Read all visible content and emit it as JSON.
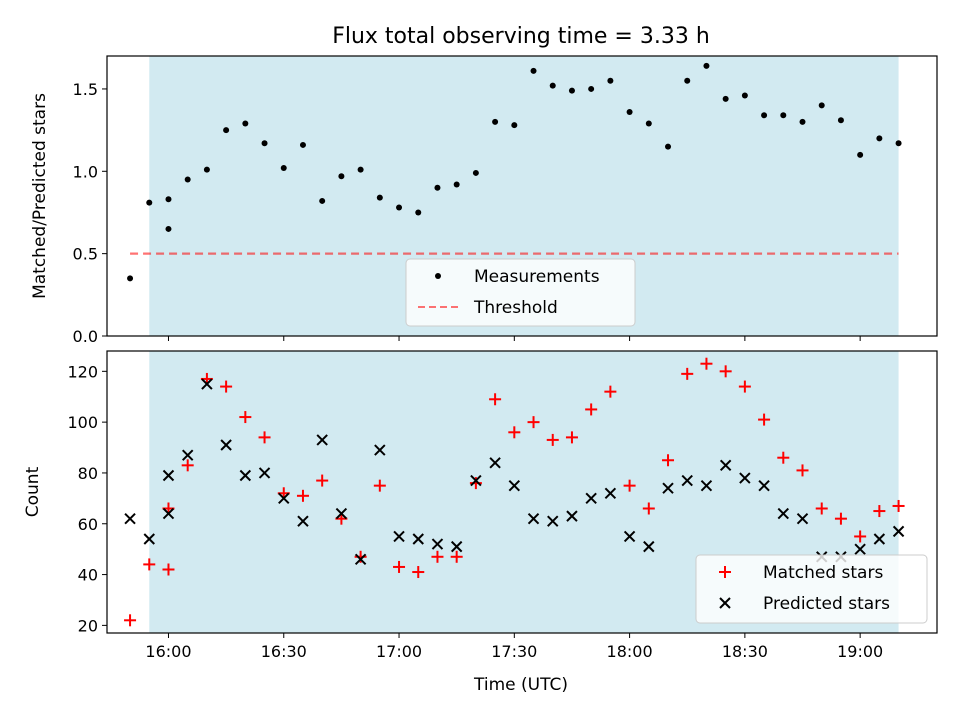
{
  "figure": {
    "title": "Flux total observing time = 3.33 h",
    "xlabel": "Time (UTC)"
  },
  "chart_data": [
    {
      "type": "scatter",
      "panel": "top",
      "title": "Flux total observing time = 3.33 h",
      "ylabel": "Matched/Predicted stars",
      "xlim": [
        "15:44",
        "19:20"
      ],
      "ylim": [
        0,
        1.7
      ],
      "yticks": [
        0.0,
        0.5,
        1.0,
        1.5
      ],
      "ytick_labels": [
        "0.0",
        "0.5",
        "1.0",
        "1.5"
      ],
      "xticks": [
        "16:00",
        "16:30",
        "17:00",
        "17:30",
        "18:00",
        "18:30",
        "19:00"
      ],
      "shaded_span": {
        "from": "15:55",
        "to": "19:10",
        "color": "#add8e6"
      },
      "legend": {
        "placement": "bottom-center",
        "entries": [
          "Measurements",
          "Threshold"
        ]
      },
      "series": [
        {
          "name": "Measurements",
          "marker": "dot",
          "color": "#000000",
          "points": [
            [
              "15:50",
              0.35
            ],
            [
              "15:55",
              0.81
            ],
            [
              "16:00",
              0.83
            ],
            [
              "16:00",
              0.65
            ],
            [
              "16:05",
              0.95
            ],
            [
              "16:10",
              1.01
            ],
            [
              "16:15",
              1.25
            ],
            [
              "16:20",
              1.29
            ],
            [
              "16:25",
              1.17
            ],
            [
              "16:30",
              1.02
            ],
            [
              "16:35",
              1.16
            ],
            [
              "16:40",
              0.82
            ],
            [
              "16:45",
              0.97
            ],
            [
              "16:50",
              1.01
            ],
            [
              "16:55",
              0.84
            ],
            [
              "17:00",
              0.78
            ],
            [
              "17:05",
              0.75
            ],
            [
              "17:10",
              0.9
            ],
            [
              "17:15",
              0.92
            ],
            [
              "17:20",
              0.99
            ],
            [
              "17:25",
              1.3
            ],
            [
              "17:30",
              1.28
            ],
            [
              "17:35",
              1.61
            ],
            [
              "17:40",
              1.52
            ],
            [
              "17:45",
              1.49
            ],
            [
              "17:50",
              1.5
            ],
            [
              "17:55",
              1.55
            ],
            [
              "18:00",
              1.36
            ],
            [
              "18:05",
              1.29
            ],
            [
              "18:10",
              1.15
            ],
            [
              "18:15",
              1.55
            ],
            [
              "18:20",
              1.64
            ],
            [
              "18:25",
              1.44
            ],
            [
              "18:30",
              1.46
            ],
            [
              "18:35",
              1.34
            ],
            [
              "18:40",
              1.34
            ],
            [
              "18:45",
              1.3
            ],
            [
              "18:50",
              1.4
            ],
            [
              "18:55",
              1.31
            ],
            [
              "19:00",
              1.1
            ],
            [
              "19:05",
              1.2
            ],
            [
              "19:10",
              1.17
            ]
          ]
        },
        {
          "name": "Threshold",
          "type": "line",
          "style": "dashed",
          "color": "#ff0000",
          "alpha": 0.55,
          "points": [
            [
              "15:50",
              0.5
            ],
            [
              "19:10",
              0.5
            ]
          ]
        }
      ]
    },
    {
      "type": "scatter",
      "panel": "bottom",
      "ylabel": "Count",
      "xlabel": "Time (UTC)",
      "xlim": [
        "15:44",
        "19:20"
      ],
      "ylim": [
        17,
        128
      ],
      "yticks": [
        20,
        40,
        60,
        80,
        100,
        120
      ],
      "ytick_labels": [
        "20",
        "40",
        "60",
        "80",
        "100",
        "120"
      ],
      "xticks": [
        "16:00",
        "16:30",
        "17:00",
        "17:30",
        "18:00",
        "18:30",
        "19:00"
      ],
      "shaded_span": {
        "from": "15:55",
        "to": "19:10",
        "color": "#add8e6"
      },
      "legend": {
        "placement": "bottom-right",
        "entries": [
          "Matched stars",
          "Predicted stars"
        ]
      },
      "series": [
        {
          "name": "Matched stars",
          "marker": "plus",
          "color": "#ff0000",
          "points": [
            [
              "15:50",
              22
            ],
            [
              "15:55",
              44
            ],
            [
              "16:00",
              66
            ],
            [
              "16:00",
              42
            ],
            [
              "16:05",
              83
            ],
            [
              "16:10",
              117
            ],
            [
              "16:15",
              114
            ],
            [
              "16:20",
              102
            ],
            [
              "16:25",
              94
            ],
            [
              "16:30",
              72
            ],
            [
              "16:35",
              71
            ],
            [
              "16:40",
              77
            ],
            [
              "16:45",
              62
            ],
            [
              "16:50",
              47
            ],
            [
              "16:55",
              75
            ],
            [
              "17:00",
              43
            ],
            [
              "17:05",
              41
            ],
            [
              "17:10",
              47
            ],
            [
              "17:15",
              47
            ],
            [
              "17:20",
              76
            ],
            [
              "17:25",
              109
            ],
            [
              "17:30",
              96
            ],
            [
              "17:35",
              100
            ],
            [
              "17:40",
              93
            ],
            [
              "17:45",
              94
            ],
            [
              "17:50",
              105
            ],
            [
              "17:55",
              112
            ],
            [
              "18:00",
              75
            ],
            [
              "18:05",
              66
            ],
            [
              "18:10",
              85
            ],
            [
              "18:15",
              119
            ],
            [
              "18:20",
              123
            ],
            [
              "18:25",
              120
            ],
            [
              "18:30",
              114
            ],
            [
              "18:35",
              101
            ],
            [
              "18:40",
              86
            ],
            [
              "18:45",
              81
            ],
            [
              "18:50",
              66
            ],
            [
              "18:55",
              62
            ],
            [
              "19:00",
              55
            ],
            [
              "19:05",
              65
            ],
            [
              "19:10",
              67
            ]
          ]
        },
        {
          "name": "Predicted stars",
          "marker": "x",
          "color": "#000000",
          "points": [
            [
              "15:50",
              62
            ],
            [
              "15:55",
              54
            ],
            [
              "16:00",
              79
            ],
            [
              "16:00",
              64
            ],
            [
              "16:05",
              87
            ],
            [
              "16:10",
              115
            ],
            [
              "16:15",
              91
            ],
            [
              "16:20",
              79
            ],
            [
              "16:25",
              80
            ],
            [
              "16:30",
              70
            ],
            [
              "16:35",
              61
            ],
            [
              "16:40",
              93
            ],
            [
              "16:45",
              64
            ],
            [
              "16:50",
              46
            ],
            [
              "16:55",
              89
            ],
            [
              "17:00",
              55
            ],
            [
              "17:05",
              54
            ],
            [
              "17:10",
              52
            ],
            [
              "17:15",
              51
            ],
            [
              "17:20",
              77
            ],
            [
              "17:25",
              84
            ],
            [
              "17:30",
              75
            ],
            [
              "17:35",
              62
            ],
            [
              "17:40",
              61
            ],
            [
              "17:45",
              63
            ],
            [
              "17:50",
              70
            ],
            [
              "17:55",
              72
            ],
            [
              "18:00",
              55
            ],
            [
              "18:05",
              51
            ],
            [
              "18:10",
              74
            ],
            [
              "18:15",
              77
            ],
            [
              "18:20",
              75
            ],
            [
              "18:25",
              83
            ],
            [
              "18:30",
              78
            ],
            [
              "18:35",
              75
            ],
            [
              "18:40",
              64
            ],
            [
              "18:45",
              62
            ],
            [
              "18:50",
              47
            ],
            [
              "18:55",
              47
            ],
            [
              "19:00",
              50
            ],
            [
              "19:05",
              54
            ],
            [
              "19:10",
              57
            ]
          ]
        }
      ]
    }
  ]
}
